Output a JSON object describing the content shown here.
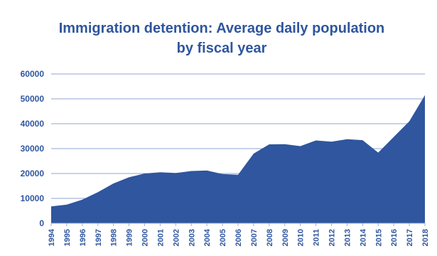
{
  "chart_data": {
    "type": "area",
    "title_lines": [
      "Immigration detention: Average daily population",
      "by fiscal year"
    ],
    "xlabel": "",
    "ylabel": "",
    "ylim": [
      0,
      60000
    ],
    "yticks": [
      "0",
      "10000",
      "20000",
      "30000",
      "40000",
      "50000",
      "60000"
    ],
    "grid": true,
    "legend": "none",
    "colors": {
      "fill": "#2f569e",
      "text": "#2f569e",
      "grid": "#8fa6d6",
      "axis": "#9bb0d8"
    },
    "categories": [
      "1994",
      "1995",
      "1996",
      "1997",
      "1998",
      "1999",
      "2000",
      "2001",
      "2002",
      "2003",
      "2004",
      "2005",
      "2006",
      "2007",
      "2008",
      "2009",
      "2010",
      "2011",
      "2012",
      "2013",
      "2014",
      "2015",
      "2016",
      "2017",
      "2018"
    ],
    "values": [
      6800,
      7500,
      9500,
      12500,
      16000,
      18500,
      20000,
      20500,
      20200,
      21000,
      21200,
      19800,
      19500,
      28000,
      31700,
      31800,
      31000,
      33300,
      32800,
      33800,
      33400,
      28400,
      34700,
      41000,
      51500
    ]
  }
}
